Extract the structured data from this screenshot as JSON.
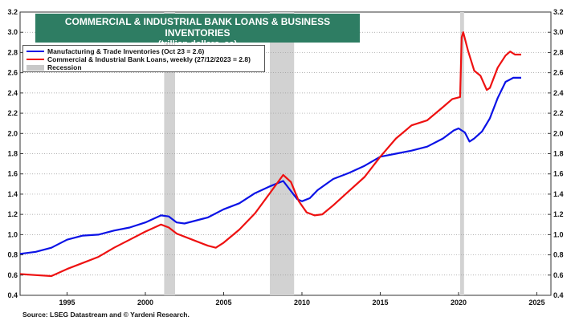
{
  "title": {
    "line1": "COMMERCIAL & INDUSTRIAL BANK LOANS & BUSINESS INVENTORIES",
    "line2": "(trillion dollars, sa)"
  },
  "legend": {
    "items": [
      {
        "label": "Manufacturing & Trade Inventories (Oct 23 = 2.6)",
        "color": "#0b12e6"
      },
      {
        "label": "Commercial & Industrial Bank Loans, weekly (27/12/2023 = 2.8)",
        "color": "#ee1111"
      },
      {
        "label": "Recession",
        "color": "#c8c8c8"
      }
    ]
  },
  "source": "Source: LSEG Datastream and © Yardeni Research.",
  "chart_data": {
    "type": "line",
    "xlim": [
      1992.0,
      2025.9
    ],
    "ylim": [
      0.4,
      3.2
    ],
    "x_ticks": [
      "1995",
      "2000",
      "2005",
      "2010",
      "2015",
      "2020",
      "2025"
    ],
    "y_ticks": [
      "0.4",
      "0.6",
      "0.8",
      "1.0",
      "1.2",
      "1.4",
      "1.6",
      "1.8",
      "2.0",
      "2.2",
      "2.4",
      "2.6",
      "2.8",
      "3.0",
      "3.2"
    ],
    "grid": "horizontal dotted",
    "recessions": [
      [
        2001.2,
        2001.9
      ],
      [
        2007.95,
        2009.5
      ],
      [
        2020.1,
        2020.35
      ]
    ],
    "series": [
      {
        "name": "Manufacturing & Trade Inventories (Oct 23 = 2.6)",
        "color": "#0b12e6",
        "points": [
          [
            1992.0,
            0.81
          ],
          [
            1993.0,
            0.83
          ],
          [
            1994.0,
            0.87
          ],
          [
            1995.0,
            0.95
          ],
          [
            1996.0,
            0.99
          ],
          [
            1997.0,
            1.0
          ],
          [
            1998.0,
            1.04
          ],
          [
            1999.0,
            1.07
          ],
          [
            2000.0,
            1.12
          ],
          [
            2001.0,
            1.19
          ],
          [
            2001.5,
            1.18
          ],
          [
            2002.0,
            1.12
          ],
          [
            2002.5,
            1.11
          ],
          [
            2003.0,
            1.13
          ],
          [
            2004.0,
            1.17
          ],
          [
            2005.0,
            1.25
          ],
          [
            2006.0,
            1.31
          ],
          [
            2007.0,
            1.41
          ],
          [
            2008.0,
            1.48
          ],
          [
            2008.8,
            1.53
          ],
          [
            2009.3,
            1.43
          ],
          [
            2009.7,
            1.35
          ],
          [
            2010.0,
            1.33
          ],
          [
            2010.5,
            1.36
          ],
          [
            2011.0,
            1.44
          ],
          [
            2012.0,
            1.55
          ],
          [
            2013.0,
            1.61
          ],
          [
            2014.0,
            1.68
          ],
          [
            2015.0,
            1.77
          ],
          [
            2016.0,
            1.8
          ],
          [
            2017.0,
            1.83
          ],
          [
            2018.0,
            1.87
          ],
          [
            2019.0,
            1.95
          ],
          [
            2019.7,
            2.03
          ],
          [
            2020.0,
            2.05
          ],
          [
            2020.4,
            2.01
          ],
          [
            2020.7,
            1.92
          ],
          [
            2021.0,
            1.95
          ],
          [
            2021.5,
            2.02
          ],
          [
            2022.0,
            2.15
          ],
          [
            2022.5,
            2.35
          ],
          [
            2023.0,
            2.51
          ],
          [
            2023.5,
            2.55
          ],
          [
            2024.0,
            2.55
          ]
        ]
      },
      {
        "name": "Commercial & Industrial Bank Loans, weekly (27/12/2023 = 2.8)",
        "color": "#ee1111",
        "points": [
          [
            1992.0,
            0.61
          ],
          [
            1993.0,
            0.6
          ],
          [
            1994.0,
            0.59
          ],
          [
            1995.0,
            0.66
          ],
          [
            1996.0,
            0.72
          ],
          [
            1997.0,
            0.78
          ],
          [
            1998.0,
            0.87
          ],
          [
            1999.0,
            0.95
          ],
          [
            2000.0,
            1.03
          ],
          [
            2001.0,
            1.1
          ],
          [
            2001.5,
            1.07
          ],
          [
            2002.0,
            1.01
          ],
          [
            2003.0,
            0.95
          ],
          [
            2004.0,
            0.89
          ],
          [
            2004.5,
            0.87
          ],
          [
            2005.0,
            0.92
          ],
          [
            2006.0,
            1.05
          ],
          [
            2007.0,
            1.21
          ],
          [
            2008.0,
            1.42
          ],
          [
            2008.8,
            1.59
          ],
          [
            2009.3,
            1.52
          ],
          [
            2009.8,
            1.33
          ],
          [
            2010.3,
            1.22
          ],
          [
            2010.8,
            1.19
          ],
          [
            2011.3,
            1.2
          ],
          [
            2012.0,
            1.29
          ],
          [
            2013.0,
            1.43
          ],
          [
            2014.0,
            1.57
          ],
          [
            2015.0,
            1.77
          ],
          [
            2016.0,
            1.95
          ],
          [
            2017.0,
            2.08
          ],
          [
            2018.0,
            2.13
          ],
          [
            2019.0,
            2.26
          ],
          [
            2019.6,
            2.34
          ],
          [
            2020.1,
            2.36
          ],
          [
            2020.2,
            2.95
          ],
          [
            2020.3,
            3.0
          ],
          [
            2020.6,
            2.82
          ],
          [
            2021.0,
            2.62
          ],
          [
            2021.4,
            2.57
          ],
          [
            2021.8,
            2.43
          ],
          [
            2022.0,
            2.45
          ],
          [
            2022.5,
            2.65
          ],
          [
            2023.0,
            2.77
          ],
          [
            2023.3,
            2.81
          ],
          [
            2023.6,
            2.78
          ],
          [
            2024.0,
            2.78
          ]
        ]
      }
    ]
  }
}
